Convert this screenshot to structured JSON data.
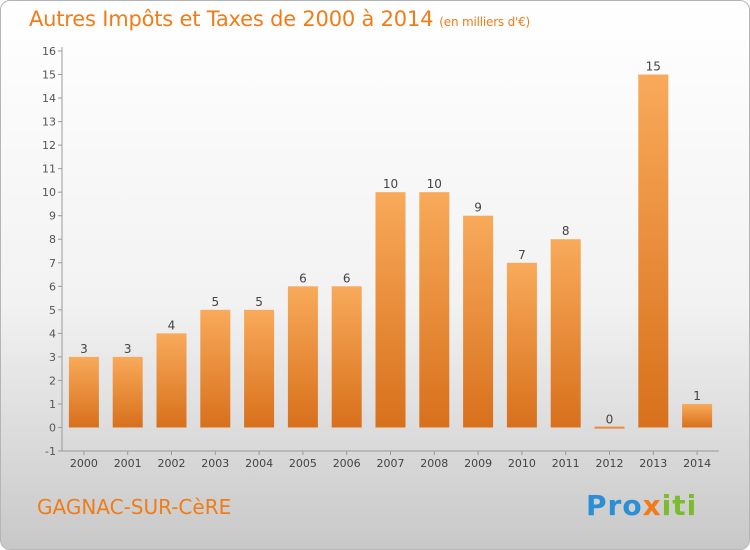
{
  "title": "Autres Impôts et Taxes de 2000 à 2014",
  "title_unit": "(en milliers d'€)",
  "commune": "GAGNAC-SUR-CèRE",
  "brand": {
    "part1": "Pro",
    "part2": "x",
    "part3": "iti",
    "colors": [
      "#2b8fd6",
      "#f07c18",
      "#7cbb2e"
    ]
  },
  "colors": {
    "bar_top": "#f8aa5a",
    "bar_bottom": "#d8701c",
    "title": "#f07c18"
  },
  "chart_data": {
    "type": "bar",
    "title": "Autres Impôts et Taxes de 2000 à 2014",
    "subtitle": "(en milliers d'€)",
    "xlabel": "",
    "ylabel": "",
    "categories": [
      "2000",
      "2001",
      "2002",
      "2003",
      "2004",
      "2005",
      "2006",
      "2007",
      "2008",
      "2009",
      "2010",
      "2011",
      "2012",
      "2013",
      "2014"
    ],
    "values": [
      3,
      3,
      4,
      5,
      5,
      6,
      6,
      10,
      10,
      9,
      7,
      8,
      0,
      15,
      1
    ],
    "ylim": [
      -1,
      16
    ],
    "yticks": [
      -1,
      0,
      1,
      2,
      3,
      4,
      5,
      6,
      7,
      8,
      9,
      10,
      11,
      12,
      13,
      14,
      15,
      16
    ],
    "grid": false,
    "legend": "none"
  }
}
